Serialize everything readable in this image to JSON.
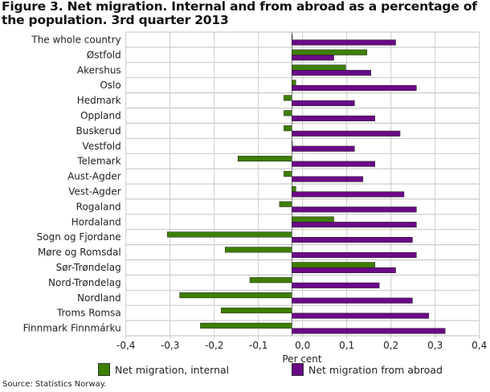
{
  "chart_data": {
    "type": "bar",
    "orientation": "horizontal",
    "title": "Figure 3. Net migration. Internal and from abroad as a percentage of the population. 3rd quarter 2013",
    "xlabel": "Per cent",
    "xlim": [
      -0.4,
      0.4
    ],
    "xticks": [
      "-0,4",
      "-0,3",
      "-0,2",
      "-0,1",
      "0,0",
      "0,1",
      "0,2",
      "0,3",
      "0,4"
    ],
    "grid": true,
    "legend_placement": "bottom",
    "categories": [
      "The whole country",
      "Østfold",
      "Akershus",
      "Oslo",
      "Hedmark",
      "Oppland",
      "Buskerud",
      "Vestfold",
      "Telemark",
      "Aust-Agder",
      "Vest-Agder",
      "Rogaland",
      "Hordaland",
      "Sogn og Fjordane",
      "Møre og Romsdal",
      "Sør-Trøndelag",
      "Nord-Trøndelag",
      "Nordland",
      "Troms Romsa",
      "Finnmark Finnmárku"
    ],
    "series": [
      {
        "name": "Net migration, internal",
        "color": "#3d7f00",
        "values": [
          0,
          0.17,
          0.122,
          0.009,
          -0.018,
          -0.018,
          -0.018,
          0,
          -0.122,
          -0.018,
          0.009,
          -0.028,
          0.095,
          -0.282,
          -0.151,
          0.188,
          -0.095,
          -0.254,
          -0.16,
          -0.207
        ]
      },
      {
        "name": "Net migration from abroad",
        "color": "#6a0a86",
        "values": [
          0.235,
          0.095,
          0.179,
          0.282,
          0.142,
          0.188,
          0.245,
          0.142,
          0.188,
          0.161,
          0.254,
          0.282,
          0.282,
          0.273,
          0.282,
          0.235,
          0.198,
          0.273,
          0.31,
          0.347
        ]
      }
    ]
  },
  "source": "Source: Statistics Norway."
}
